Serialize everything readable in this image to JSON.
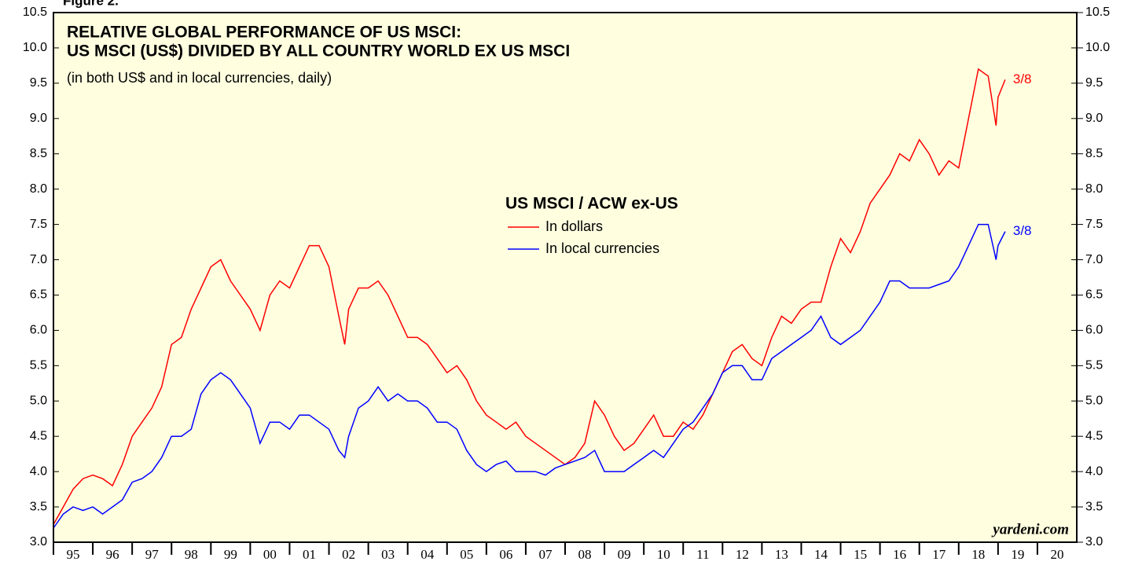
{
  "chart_data": {
    "type": "line",
    "figure_label": "Figure 2.",
    "title": "RELATIVE GLOBAL PERFORMANCE OF US MSCI:",
    "title_line2": "US MSCI (US$) DIVIDED BY ALL COUNTRY WORLD EX US MSCI",
    "subtitle": "(in both US$ and in local currencies, daily)",
    "legend_title": "US MSCI / ACW ex-US",
    "source": "yardeni.com",
    "x": [
      1995,
      1995.25,
      1995.5,
      1995.75,
      1996,
      1996.25,
      1996.5,
      1996.75,
      1997,
      1997.25,
      1997.5,
      1997.75,
      1998,
      1998.25,
      1998.5,
      1998.75,
      1999,
      1999.25,
      1999.5,
      1999.75,
      2000,
      2000.25,
      2000.5,
      2000.75,
      2001,
      2001.25,
      2001.5,
      2001.75,
      2002,
      2002.25,
      2002.4,
      2002.5,
      2002.75,
      2003,
      2003.25,
      2003.5,
      2003.75,
      2004,
      2004.25,
      2004.5,
      2004.75,
      2005,
      2005.25,
      2005.5,
      2005.75,
      2006,
      2006.25,
      2006.5,
      2006.75,
      2007,
      2007.25,
      2007.5,
      2007.75,
      2008,
      2008.25,
      2008.5,
      2008.75,
      2009,
      2009.25,
      2009.5,
      2009.75,
      2010,
      2010.25,
      2010.5,
      2010.75,
      2011,
      2011.25,
      2011.5,
      2011.75,
      2012,
      2012.25,
      2012.5,
      2012.75,
      2013,
      2013.25,
      2013.5,
      2013.75,
      2014,
      2014.25,
      2014.5,
      2014.75,
      2015,
      2015.25,
      2015.5,
      2015.75,
      2016,
      2016.25,
      2016.5,
      2016.75,
      2017,
      2017.25,
      2017.5,
      2017.75,
      2018,
      2018.25,
      2018.5,
      2018.75,
      2018.95,
      2019,
      2019.18
    ],
    "series": [
      {
        "name": "In dollars",
        "color": "#ff0000",
        "end_label": "3/8",
        "values": [
          3.25,
          3.5,
          3.75,
          3.9,
          3.95,
          3.9,
          3.8,
          4.1,
          4.5,
          4.7,
          4.9,
          5.2,
          5.8,
          5.9,
          6.3,
          6.6,
          6.9,
          7.0,
          6.7,
          6.5,
          6.3,
          6.0,
          6.5,
          6.7,
          6.6,
          6.9,
          7.2,
          7.2,
          6.9,
          6.2,
          5.8,
          6.3,
          6.6,
          6.6,
          6.7,
          6.5,
          6.2,
          5.9,
          5.9,
          5.8,
          5.6,
          5.4,
          5.5,
          5.3,
          5.0,
          4.8,
          4.7,
          4.6,
          4.7,
          4.5,
          4.4,
          4.3,
          4.2,
          4.1,
          4.2,
          4.4,
          5.0,
          4.8,
          4.5,
          4.3,
          4.4,
          4.6,
          4.8,
          4.5,
          4.5,
          4.7,
          4.6,
          4.8,
          5.1,
          5.4,
          5.7,
          5.8,
          5.6,
          5.5,
          5.9,
          6.2,
          6.1,
          6.3,
          6.4,
          6.4,
          6.9,
          7.3,
          7.1,
          7.4,
          7.8,
          8.0,
          8.2,
          8.5,
          8.4,
          8.7,
          8.5,
          8.2,
          8.4,
          8.3,
          9.0,
          9.7,
          9.6,
          8.9,
          9.3,
          9.55
        ]
      },
      {
        "name": "In local currencies",
        "color": "#0000ff",
        "end_label": "3/8",
        "values": [
          3.2,
          3.4,
          3.5,
          3.45,
          3.5,
          3.4,
          3.5,
          3.6,
          3.85,
          3.9,
          4.0,
          4.2,
          4.5,
          4.5,
          4.6,
          5.1,
          5.3,
          5.4,
          5.3,
          5.1,
          4.9,
          4.4,
          4.7,
          4.7,
          4.6,
          4.8,
          4.8,
          4.7,
          4.6,
          4.3,
          4.2,
          4.5,
          4.9,
          5.0,
          5.2,
          5.0,
          5.1,
          5.0,
          5.0,
          4.9,
          4.7,
          4.7,
          4.6,
          4.3,
          4.1,
          4.0,
          4.1,
          4.15,
          4.0,
          4.0,
          4.0,
          3.95,
          4.05,
          4.1,
          4.15,
          4.2,
          4.3,
          4.0,
          4.0,
          4.0,
          4.1,
          4.2,
          4.3,
          4.2,
          4.4,
          4.6,
          4.7,
          4.9,
          5.1,
          5.4,
          5.5,
          5.5,
          5.3,
          5.3,
          5.6,
          5.7,
          5.8,
          5.9,
          6.0,
          6.2,
          5.9,
          5.8,
          5.9,
          6.0,
          6.2,
          6.4,
          6.7,
          6.7,
          6.6,
          6.6,
          6.6,
          6.65,
          6.7,
          6.9,
          7.2,
          7.5,
          7.5,
          7.0,
          7.2,
          7.4
        ]
      }
    ],
    "xlim": [
      1995,
      2021
    ],
    "xticks": [
      {
        "value": 1995,
        "label": "95"
      },
      {
        "value": 1996,
        "label": "96"
      },
      {
        "value": 1997,
        "label": "97"
      },
      {
        "value": 1998,
        "label": "98"
      },
      {
        "value": 1999,
        "label": "99"
      },
      {
        "value": 2000,
        "label": "00"
      },
      {
        "value": 2001,
        "label": "01"
      },
      {
        "value": 2002,
        "label": "02"
      },
      {
        "value": 2003,
        "label": "03"
      },
      {
        "value": 2004,
        "label": "04"
      },
      {
        "value": 2005,
        "label": "05"
      },
      {
        "value": 2006,
        "label": "06"
      },
      {
        "value": 2007,
        "label": "07"
      },
      {
        "value": 2008,
        "label": "08"
      },
      {
        "value": 2009,
        "label": "09"
      },
      {
        "value": 2010,
        "label": "10"
      },
      {
        "value": 2011,
        "label": "11"
      },
      {
        "value": 2012,
        "label": "12"
      },
      {
        "value": 2013,
        "label": "13"
      },
      {
        "value": 2014,
        "label": "14"
      },
      {
        "value": 2015,
        "label": "15"
      },
      {
        "value": 2016,
        "label": "16"
      },
      {
        "value": 2017,
        "label": "17"
      },
      {
        "value": 2018,
        "label": "18"
      },
      {
        "value": 2019,
        "label": "19"
      },
      {
        "value": 2020,
        "label": "20"
      }
    ],
    "ylim": [
      3,
      10.5
    ],
    "yticks": [
      {
        "value": 3,
        "label": "3.0"
      },
      3.5,
      {
        "value": 4,
        "label": "4.0"
      },
      4.5,
      {
        "value": 5,
        "label": "5.0"
      },
      5.5,
      {
        "value": 6,
        "label": "6.0"
      },
      6.5,
      {
        "value": 7,
        "label": "7.0"
      },
      7.5,
      {
        "value": 8,
        "label": "8.0"
      },
      8.5,
      {
        "value": 9,
        "label": "9.0"
      },
      9.5,
      {
        "value": 10,
        "label": "10.0"
      },
      10.5
    ],
    "right_axis": true,
    "plot_background": "#ffffe0"
  }
}
